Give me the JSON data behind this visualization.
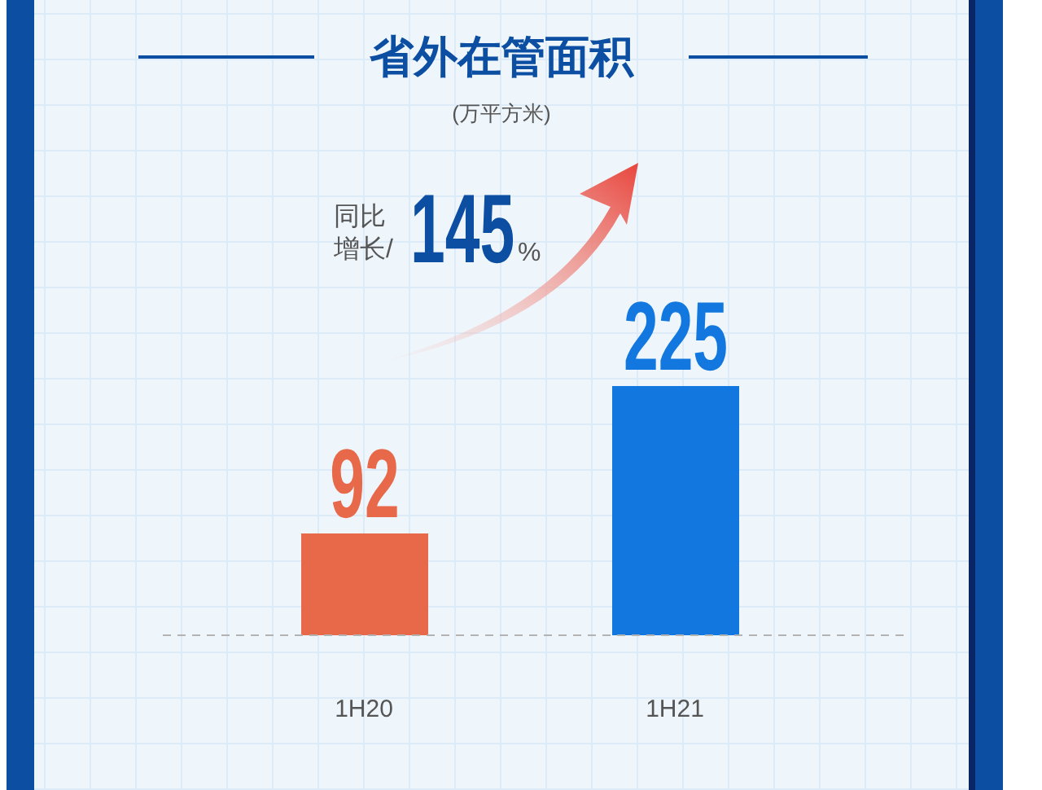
{
  "chart_data": {
    "type": "bar",
    "title": "省外在管面积",
    "subtitle": "(万平方米)",
    "categories": [
      "1H20",
      "1H21"
    ],
    "values": [
      92,
      225
    ],
    "colors": [
      "#e8694a",
      "#1278df"
    ],
    "data_labels": true,
    "annotations": [
      "同比增长/145%"
    ]
  }
}
